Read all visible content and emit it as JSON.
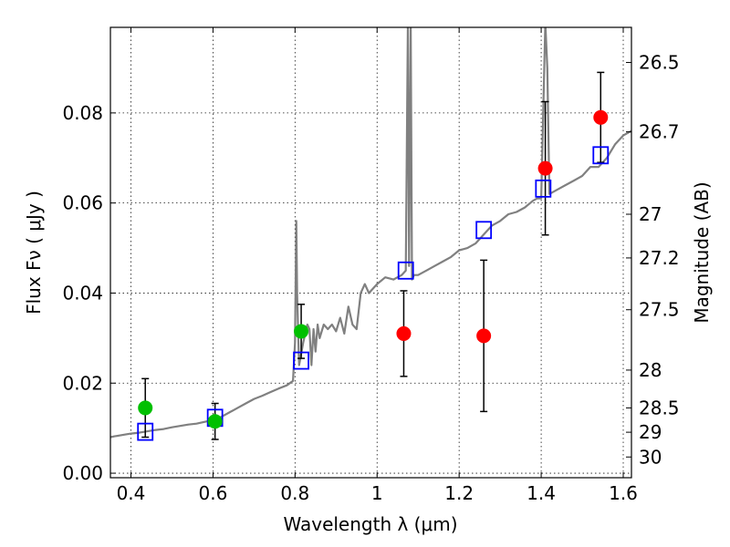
{
  "chart_data": {
    "type": "scatter",
    "xlabel": "Wavelength  λ (μm)",
    "ylabel": "Flux  Fν  ( μJy )",
    "ylabel_right": "Magnitude (AB)",
    "xlim": [
      0.35,
      1.62
    ],
    "ylim": [
      -0.001,
      0.099
    ],
    "grid": true,
    "x_ticks": [
      {
        "value": 0.4,
        "label": "0.4"
      },
      {
        "value": 0.6,
        "label": "0.6"
      },
      {
        "value": 0.8,
        "label": "0.8"
      },
      {
        "value": 1.0,
        "label": "1"
      },
      {
        "value": 1.2,
        "label": "1.2"
      },
      {
        "value": 1.4,
        "label": "1.4"
      },
      {
        "value": 1.6,
        "label": "1.6"
      }
    ],
    "y_ticks": [
      {
        "value": 0.0,
        "label": "0.00"
      },
      {
        "value": 0.02,
        "label": "0.02"
      },
      {
        "value": 0.04,
        "label": "0.04"
      },
      {
        "value": 0.06,
        "label": "0.06"
      },
      {
        "value": 0.08,
        "label": "0.08"
      }
    ],
    "mag_ticks": [
      {
        "flux": 0.0912,
        "label": "26.5"
      },
      {
        "flux": 0.0758,
        "label": "26.7"
      },
      {
        "flux": 0.0575,
        "label": "27"
      },
      {
        "flux": 0.0478,
        "label": "27.2"
      },
      {
        "flux": 0.0363,
        "label": "27.5"
      },
      {
        "flux": 0.0229,
        "label": "28"
      },
      {
        "flux": 0.0145,
        "label": "28.5"
      },
      {
        "flux": 0.0091,
        "label": "29"
      },
      {
        "flux": 0.0036,
        "label": "30"
      }
    ],
    "series": [
      {
        "kind": "line",
        "color": "#808080",
        "x": [
          0.35,
          0.36,
          0.38,
          0.4,
          0.42,
          0.44,
          0.46,
          0.48,
          0.5,
          0.52,
          0.54,
          0.56,
          0.58,
          0.6,
          0.62,
          0.64,
          0.66,
          0.68,
          0.7,
          0.72,
          0.74,
          0.76,
          0.78,
          0.795,
          0.8,
          0.803,
          0.805,
          0.808,
          0.81,
          0.82,
          0.83,
          0.835,
          0.84,
          0.845,
          0.85,
          0.855,
          0.86,
          0.87,
          0.88,
          0.89,
          0.9,
          0.91,
          0.92,
          0.93,
          0.94,
          0.95,
          0.96,
          0.97,
          0.98,
          1.0,
          1.02,
          1.04,
          1.06,
          1.07,
          1.075,
          1.078,
          1.082,
          1.085,
          1.09,
          1.1,
          1.12,
          1.14,
          1.16,
          1.18,
          1.2,
          1.22,
          1.24,
          1.26,
          1.28,
          1.3,
          1.32,
          1.34,
          1.36,
          1.38,
          1.39,
          1.4,
          1.405,
          1.41,
          1.415,
          1.42,
          1.44,
          1.46,
          1.48,
          1.5,
          1.52,
          1.54,
          1.56,
          1.58,
          1.6,
          1.62
        ],
        "y": [
          0.008,
          0.0082,
          0.0085,
          0.0088,
          0.009,
          0.0093,
          0.0096,
          0.0098,
          0.0102,
          0.0105,
          0.0108,
          0.011,
          0.0114,
          0.0118,
          0.0125,
          0.0135,
          0.0145,
          0.0155,
          0.0165,
          0.0172,
          0.018,
          0.0188,
          0.0195,
          0.0205,
          0.029,
          0.056,
          0.04,
          0.03,
          0.024,
          0.029,
          0.033,
          0.032,
          0.024,
          0.032,
          0.027,
          0.033,
          0.03,
          0.033,
          0.032,
          0.033,
          0.0315,
          0.0345,
          0.031,
          0.037,
          0.033,
          0.032,
          0.04,
          0.042,
          0.04,
          0.042,
          0.0435,
          0.043,
          0.044,
          0.045,
          0.1,
          0.046,
          0.1,
          0.043,
          0.044,
          0.044,
          0.045,
          0.046,
          0.047,
          0.048,
          0.0495,
          0.05,
          0.051,
          0.053,
          0.055,
          0.056,
          0.0575,
          0.058,
          0.059,
          0.0605,
          0.061,
          0.061,
          0.08,
          0.1,
          0.09,
          0.062,
          0.063,
          0.064,
          0.065,
          0.066,
          0.068,
          0.068,
          0.07,
          0.073,
          0.075,
          0.076
        ]
      },
      {
        "kind": "model-boxes",
        "color": "#0000ff",
        "x": [
          0.435,
          0.605,
          0.815,
          1.07,
          1.26,
          1.405,
          1.545
        ],
        "y": [
          0.0092,
          0.0123,
          0.025,
          0.045,
          0.054,
          0.0632,
          0.0706
        ]
      },
      {
        "kind": "observed",
        "x": [
          0.435,
          0.605,
          0.815,
          1.065,
          1.26,
          1.41,
          1.545
        ],
        "y": [
          0.0145,
          0.0115,
          0.0315,
          0.031,
          0.0305,
          0.0677,
          0.079
        ],
        "yerr": [
          0.0065,
          0.004,
          0.006,
          0.0095,
          0.0168,
          0.0148,
          0.01
        ],
        "colors": [
          "#00c000",
          "#00c000",
          "#00c000",
          "#ff0000",
          "#ff0000",
          "#ff0000",
          "#ff0000"
        ]
      }
    ]
  }
}
